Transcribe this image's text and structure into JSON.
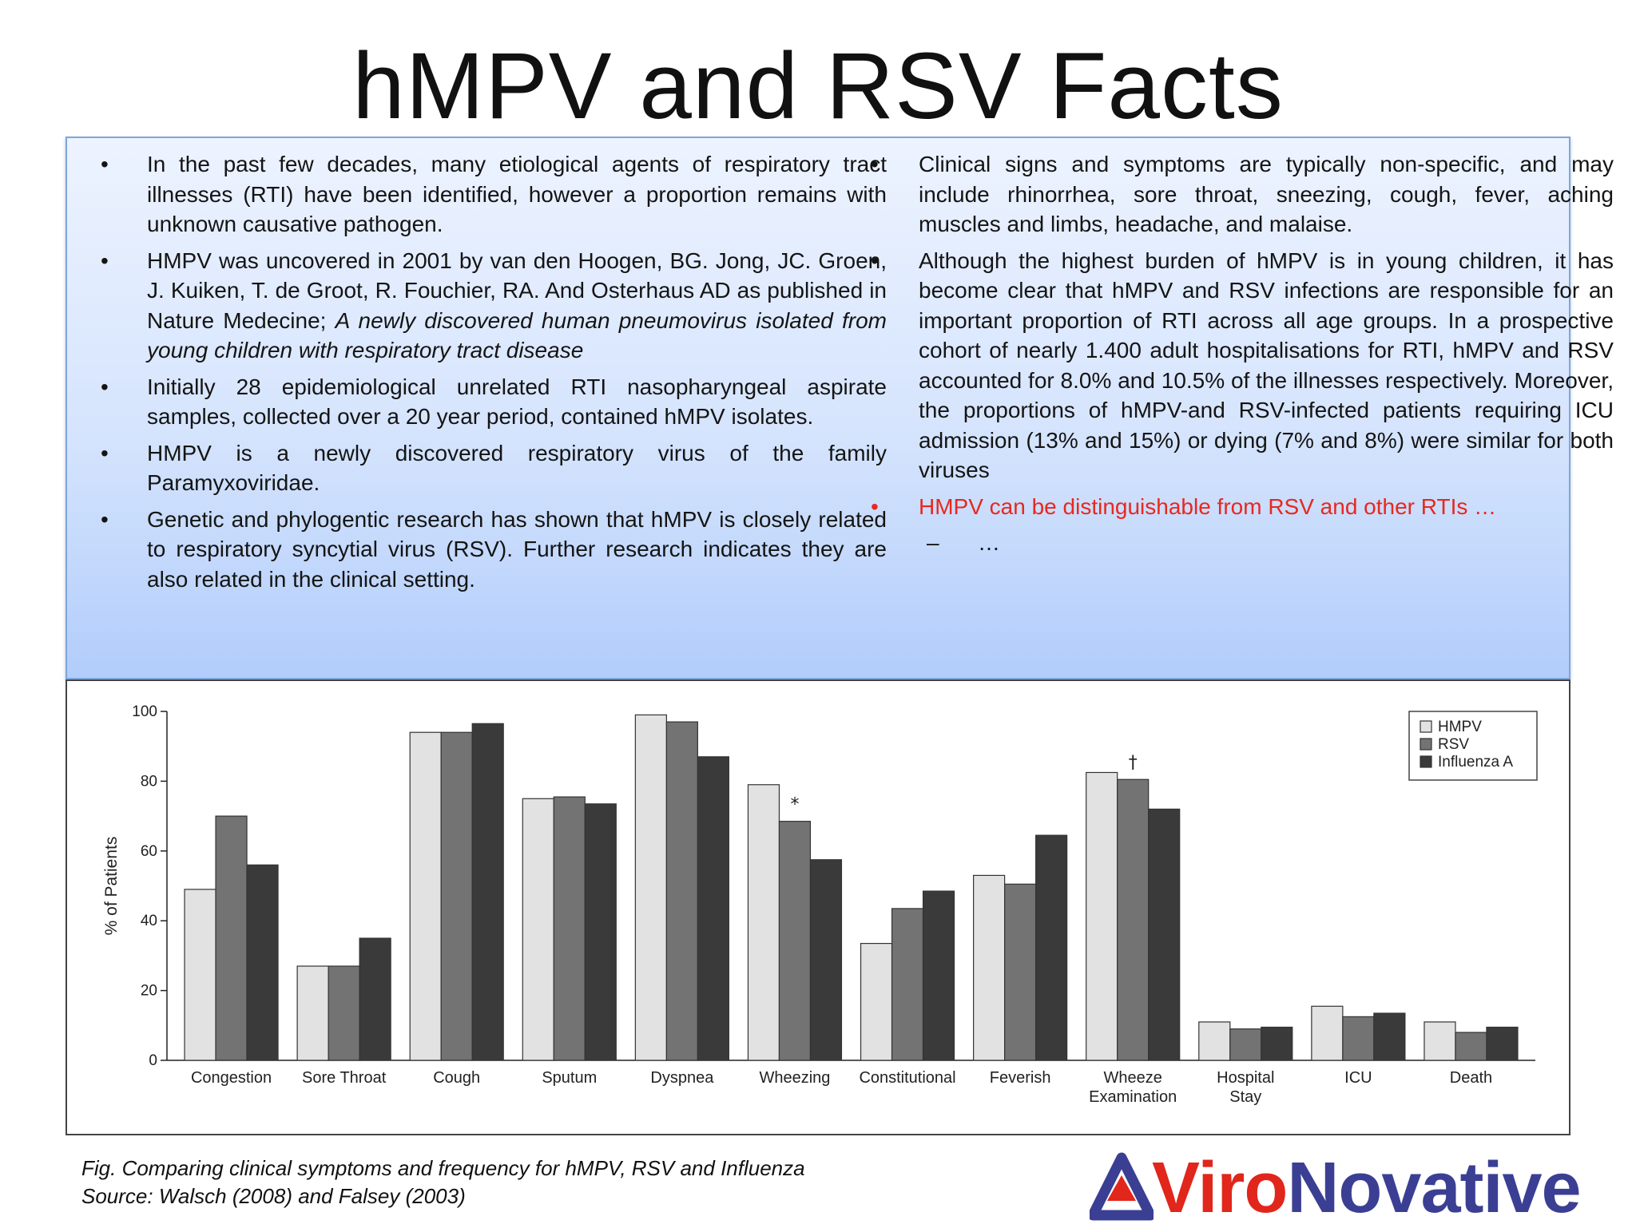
{
  "slide": {
    "title": "hMPV and RSV Facts"
  },
  "left_bullets": [
    {
      "text": "In the past few decades, many etiological agents of respiratory tract illnesses (RTI) have been identified, however a proportion remains with unknown causative pathogen."
    },
    {
      "text": "HMPV was uncovered in 2001 by van den Hoogen, BG. Jong, JC. Groen, J. Kuiken, T. de Groot, R. Fouchier, RA. And Osterhaus AD as published in Nature Medecine; ",
      "italic": "A newly discovered human pneumovirus isolated from young children with respiratory tract disease"
    },
    {
      "text": "Initially 28 epidemiological unrelated RTI nasopharyngeal aspirate samples, collected over a 20 year period, contained hMPV isolates."
    },
    {
      "text": "HMPV is a newly discovered respiratory virus of the family Paramyxoviridae."
    },
    {
      "text": "Genetic and phylogentic research has shown that hMPV is closely related to respiratory syncytial virus (RSV). Further research indicates they are also related in the clinical setting."
    }
  ],
  "right_bullets": [
    {
      "text": "Clinical signs and symptoms are typically non-specific, and may include rhinorrhea, sore throat, sneezing, cough, fever, aching muscles and limbs, headache, and malaise."
    },
    {
      "text": "Although the highest burden of hMPV is in young children, it has become clear that hMPV and RSV infections are responsible for an important proportion of RTI across all age groups. In a prospective cohort of nearly 1.400 adult hospitalisations for RTI, hMPV and RSV accounted for 8.0% and 10.5% of the illnesses respectively. Moreover, the proportions of hMPV-and RSV-infected patients requiring ICU admission (13% and 15%) or dying (7% and 8%) were similar for both viruses"
    },
    {
      "text": "HMPV can be distinguishable from RSV and other RTIs …",
      "highlight": "#e8281e"
    }
  ],
  "sub_bullet": {
    "dash": "–",
    "text": "…"
  },
  "bullet_symbol": "•",
  "chart_data": {
    "type": "bar",
    "title": "",
    "xlabel": "",
    "ylabel": "% of Patients",
    "ylim": [
      0,
      100
    ],
    "yticks": [
      0,
      20,
      40,
      60,
      80,
      100
    ],
    "categories": [
      "Congestion",
      "Sore Throat",
      "Cough",
      "Sputum",
      "Dyspnea",
      "Wheezing",
      "Constitutional",
      "Feverish",
      "Wheeze\nExamination",
      "Hospital\nStay",
      "ICU",
      "Death"
    ],
    "series": [
      {
        "name": "HMPV",
        "color": "#e2e2e2",
        "values": [
          49,
          27,
          94,
          75,
          99,
          79,
          33.5,
          53,
          82.5,
          11,
          15.5,
          11
        ]
      },
      {
        "name": "RSV",
        "color": "#737373",
        "values": [
          70,
          27,
          94,
          75.5,
          97,
          68.5,
          43.5,
          50.5,
          80.5,
          9,
          12.5,
          8
        ]
      },
      {
        "name": "Influenza A",
        "color": "#3a3a3a",
        "values": [
          56,
          35,
          96.5,
          73.5,
          87,
          57.5,
          48.5,
          64.5,
          72,
          9.5,
          13.5,
          9.5
        ]
      }
    ],
    "annotations": [
      {
        "category": "Wheezing",
        "text": "*"
      },
      {
        "category": "Wheeze\nExamination",
        "text": "†"
      }
    ],
    "legend": "top-right",
    "grid": false
  },
  "caption": {
    "line1": "Fig. Comparing clinical symptoms and frequency for hMPV, RSV and Influenza",
    "line2": "Source: Walsch (2008) and Falsey (2003)"
  },
  "logo": {
    "part1": "Viro",
    "part2": "Novative",
    "mark_color": "#3b3f93",
    "accent_color": "#e1261c"
  }
}
